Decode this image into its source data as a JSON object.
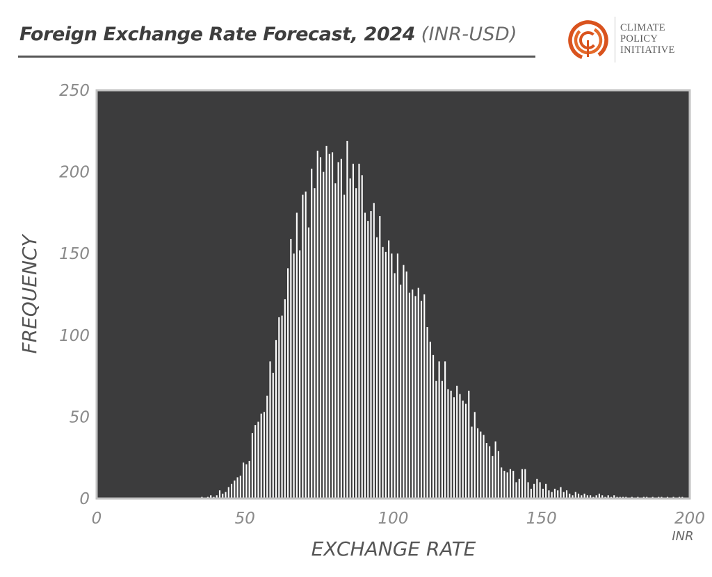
{
  "header": {
    "title_main": "Foreign Exchange Rate Forecast, 2024",
    "title_sub": "(INR-USD)"
  },
  "logo": {
    "line1": "CLIMATE",
    "line2": "POLICY",
    "line3": "INITIATIVE",
    "accent_color": "#d9531e"
  },
  "colors": {
    "plot_background": "#3c3c3d",
    "plot_border": "#c2c2c2",
    "bar": "#ffffff"
  },
  "chart_data": {
    "type": "bar",
    "title": "Foreign Exchange Rate Forecast, 2024",
    "xlabel": "EXCHANGE RATE",
    "ylabel": "FREQUENCY",
    "x_unit": "INR",
    "xlim": [
      0,
      200
    ],
    "ylim": [
      0,
      250
    ],
    "xticks": [
      0,
      50,
      100,
      150,
      200
    ],
    "yticks": [
      0,
      50,
      100,
      150,
      200,
      250
    ],
    "grid": false,
    "bin_width": 1,
    "bins": [
      {
        "x": 35,
        "y": 1
      },
      {
        "x": 37,
        "y": 1
      },
      {
        "x": 38,
        "y": 2
      },
      {
        "x": 39,
        "y": 1
      },
      {
        "x": 40,
        "y": 2
      },
      {
        "x": 41,
        "y": 5
      },
      {
        "x": 42,
        "y": 3
      },
      {
        "x": 43,
        "y": 4
      },
      {
        "x": 44,
        "y": 7
      },
      {
        "x": 45,
        "y": 9
      },
      {
        "x": 46,
        "y": 11
      },
      {
        "x": 47,
        "y": 13
      },
      {
        "x": 48,
        "y": 14
      },
      {
        "x": 49,
        "y": 22
      },
      {
        "x": 50,
        "y": 21
      },
      {
        "x": 51,
        "y": 23
      },
      {
        "x": 52,
        "y": 40
      },
      {
        "x": 53,
        "y": 45
      },
      {
        "x": 54,
        "y": 47
      },
      {
        "x": 55,
        "y": 52
      },
      {
        "x": 56,
        "y": 53
      },
      {
        "x": 57,
        "y": 63
      },
      {
        "x": 58,
        "y": 84
      },
      {
        "x": 59,
        "y": 77
      },
      {
        "x": 60,
        "y": 97
      },
      {
        "x": 61,
        "y": 111
      },
      {
        "x": 62,
        "y": 112
      },
      {
        "x": 63,
        "y": 122
      },
      {
        "x": 64,
        "y": 141
      },
      {
        "x": 65,
        "y": 159
      },
      {
        "x": 66,
        "y": 150
      },
      {
        "x": 67,
        "y": 175
      },
      {
        "x": 68,
        "y": 152
      },
      {
        "x": 69,
        "y": 186
      },
      {
        "x": 70,
        "y": 188
      },
      {
        "x": 71,
        "y": 166
      },
      {
        "x": 72,
        "y": 202
      },
      {
        "x": 73,
        "y": 190
      },
      {
        "x": 74,
        "y": 213
      },
      {
        "x": 75,
        "y": 209
      },
      {
        "x": 76,
        "y": 200
      },
      {
        "x": 77,
        "y": 216
      },
      {
        "x": 78,
        "y": 211
      },
      {
        "x": 79,
        "y": 212
      },
      {
        "x": 80,
        "y": 193
      },
      {
        "x": 81,
        "y": 206
      },
      {
        "x": 82,
        "y": 208
      },
      {
        "x": 83,
        "y": 186
      },
      {
        "x": 84,
        "y": 219
      },
      {
        "x": 85,
        "y": 196
      },
      {
        "x": 86,
        "y": 205
      },
      {
        "x": 87,
        "y": 190
      },
      {
        "x": 88,
        "y": 205
      },
      {
        "x": 89,
        "y": 198
      },
      {
        "x": 90,
        "y": 175
      },
      {
        "x": 91,
        "y": 170
      },
      {
        "x": 92,
        "y": 176
      },
      {
        "x": 93,
        "y": 181
      },
      {
        "x": 94,
        "y": 160
      },
      {
        "x": 95,
        "y": 173
      },
      {
        "x": 96,
        "y": 154
      },
      {
        "x": 97,
        "y": 151
      },
      {
        "x": 98,
        "y": 158
      },
      {
        "x": 99,
        "y": 150
      },
      {
        "x": 100,
        "y": 138
      },
      {
        "x": 101,
        "y": 150
      },
      {
        "x": 102,
        "y": 131
      },
      {
        "x": 103,
        "y": 143
      },
      {
        "x": 104,
        "y": 139
      },
      {
        "x": 105,
        "y": 126
      },
      {
        "x": 106,
        "y": 128
      },
      {
        "x": 107,
        "y": 124
      },
      {
        "x": 108,
        "y": 129
      },
      {
        "x": 109,
        "y": 121
      },
      {
        "x": 110,
        "y": 125
      },
      {
        "x": 111,
        "y": 105
      },
      {
        "x": 112,
        "y": 96
      },
      {
        "x": 113,
        "y": 88
      },
      {
        "x": 114,
        "y": 72
      },
      {
        "x": 115,
        "y": 84
      },
      {
        "x": 116,
        "y": 72
      },
      {
        "x": 117,
        "y": 84
      },
      {
        "x": 118,
        "y": 67
      },
      {
        "x": 119,
        "y": 66
      },
      {
        "x": 120,
        "y": 62
      },
      {
        "x": 121,
        "y": 69
      },
      {
        "x": 122,
        "y": 64
      },
      {
        "x": 123,
        "y": 60
      },
      {
        "x": 124,
        "y": 58
      },
      {
        "x": 125,
        "y": 66
      },
      {
        "x": 126,
        "y": 44
      },
      {
        "x": 127,
        "y": 53
      },
      {
        "x": 128,
        "y": 43
      },
      {
        "x": 129,
        "y": 41
      },
      {
        "x": 130,
        "y": 39
      },
      {
        "x": 131,
        "y": 34
      },
      {
        "x": 132,
        "y": 32
      },
      {
        "x": 133,
        "y": 26
      },
      {
        "x": 134,
        "y": 35
      },
      {
        "x": 135,
        "y": 29
      },
      {
        "x": 136,
        "y": 19
      },
      {
        "x": 137,
        "y": 17
      },
      {
        "x": 138,
        "y": 16
      },
      {
        "x": 139,
        "y": 18
      },
      {
        "x": 140,
        "y": 17
      },
      {
        "x": 141,
        "y": 10
      },
      {
        "x": 142,
        "y": 12
      },
      {
        "x": 143,
        "y": 18
      },
      {
        "x": 144,
        "y": 18
      },
      {
        "x": 145,
        "y": 10
      },
      {
        "x": 146,
        "y": 6
      },
      {
        "x": 147,
        "y": 9
      },
      {
        "x": 148,
        "y": 12
      },
      {
        "x": 149,
        "y": 10
      },
      {
        "x": 150,
        "y": 6
      },
      {
        "x": 151,
        "y": 9
      },
      {
        "x": 152,
        "y": 5
      },
      {
        "x": 153,
        "y": 4
      },
      {
        "x": 154,
        "y": 6
      },
      {
        "x": 155,
        "y": 5
      },
      {
        "x": 156,
        "y": 7
      },
      {
        "x": 157,
        "y": 4
      },
      {
        "x": 158,
        "y": 5
      },
      {
        "x": 159,
        "y": 3
      },
      {
        "x": 160,
        "y": 2
      },
      {
        "x": 161,
        "y": 4
      },
      {
        "x": 162,
        "y": 3
      },
      {
        "x": 163,
        "y": 2
      },
      {
        "x": 164,
        "y": 3
      },
      {
        "x": 165,
        "y": 2
      },
      {
        "x": 166,
        "y": 2
      },
      {
        "x": 167,
        "y": 1
      },
      {
        "x": 168,
        "y": 2
      },
      {
        "x": 169,
        "y": 3
      },
      {
        "x": 170,
        "y": 2
      },
      {
        "x": 171,
        "y": 1
      },
      {
        "x": 172,
        "y": 2
      },
      {
        "x": 173,
        "y": 1
      },
      {
        "x": 174,
        "y": 2
      },
      {
        "x": 175,
        "y": 1
      },
      {
        "x": 176,
        "y": 1
      },
      {
        "x": 177,
        "y": 1
      },
      {
        "x": 178,
        "y": 1
      },
      {
        "x": 180,
        "y": 1
      },
      {
        "x": 182,
        "y": 1
      },
      {
        "x": 184,
        "y": 1
      },
      {
        "x": 185,
        "y": 1
      },
      {
        "x": 187,
        "y": 1
      },
      {
        "x": 189,
        "y": 1
      },
      {
        "x": 190,
        "y": 1
      },
      {
        "x": 192,
        "y": 1
      },
      {
        "x": 194,
        "y": 1
      },
      {
        "x": 196,
        "y": 1
      },
      {
        "x": 197,
        "y": 1
      }
    ]
  }
}
